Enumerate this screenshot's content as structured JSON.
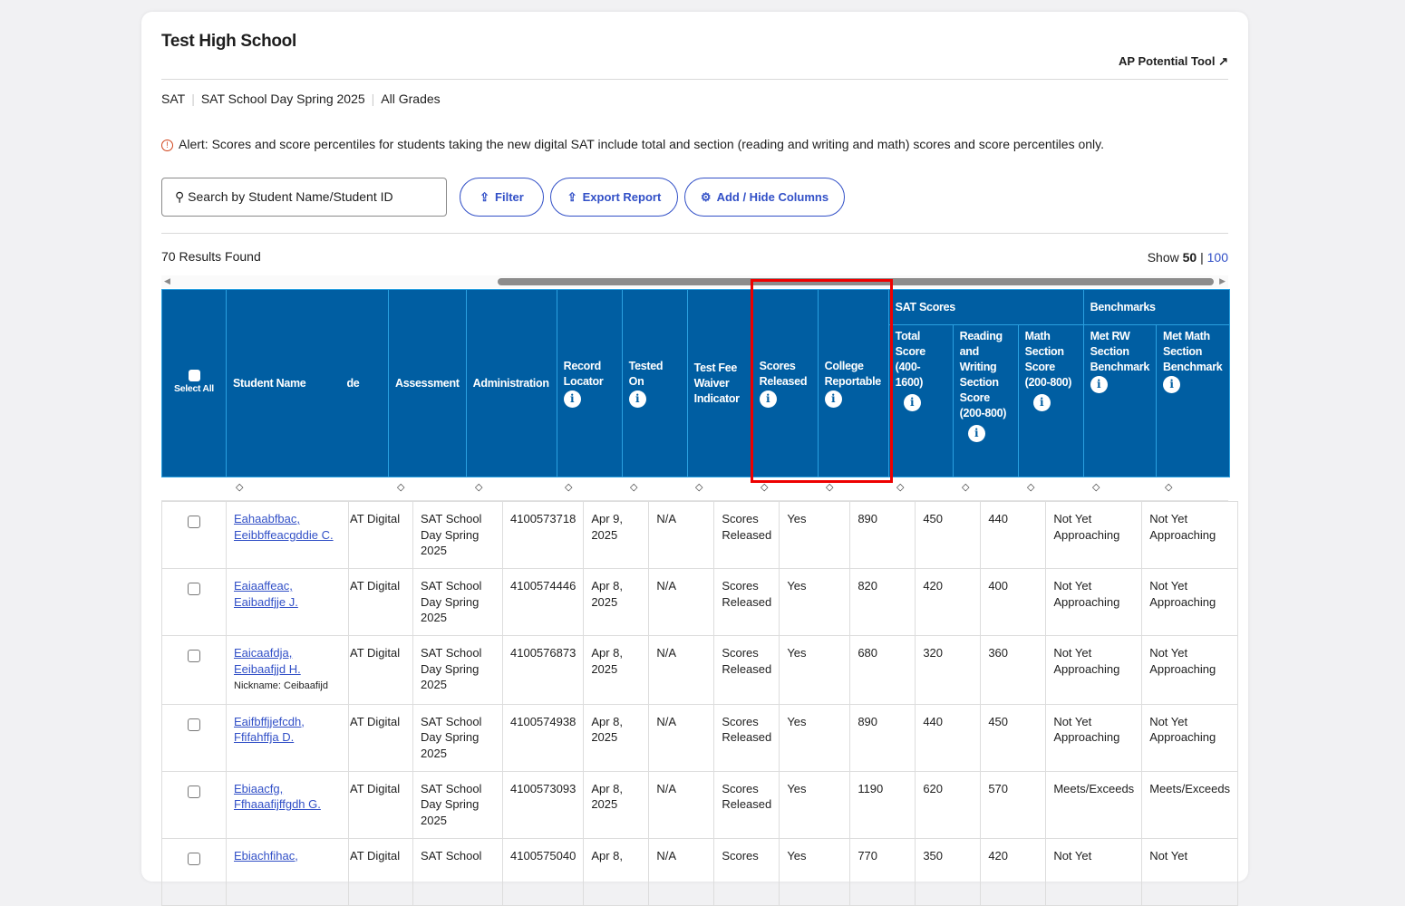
{
  "school": "Test High School",
  "ap_tool": "AP Potential Tool",
  "crumbs": [
    "SAT",
    "SAT School Day Spring 2025",
    "All Grades"
  ],
  "alert": "Alert: Scores and score percentiles for students taking the new digital SAT include total and section (reading and writing and math) scores and score percentiles only.",
  "search_placeholder": "Search by Student Name/Student ID",
  "buttons": {
    "filter": "Filter",
    "export": "Export Report",
    "columns": "Add / Hide Columns"
  },
  "results": "70 Results Found",
  "show": {
    "label": "Show",
    "current": "50",
    "sep": "|",
    "other": "100"
  },
  "headers": {
    "select_all": "Select All",
    "student_name": "Student Name",
    "de": "de",
    "assessment": "Assessment",
    "administration": "Administration",
    "record_locator": "Record Locator",
    "tested_on": "Tested On",
    "fee_waiver": "Test Fee Waiver Indicator",
    "scores_released": "Scores Released",
    "college_reportable": "College Reportable",
    "sat_scores": "SAT Scores",
    "benchmarks": "Benchmarks",
    "total": "Total Score (400-1600)",
    "rw": "Reading and Writing Section Score (200-800)",
    "math": "Math Section Score (200-800)",
    "met_rw": "Met RW Section Benchmark",
    "met_math": "Met Math Section Benchmark"
  },
  "rows": [
    {
      "name": "Eahaabfbac, Eeibbffeacgddie C.",
      "nickname": "",
      "assessment": "AT Digital",
      "admin": "SAT School Day Spring 2025",
      "locator": "4100573718",
      "tested": "Apr 9, 2025",
      "waiver": "N/A",
      "released": "Scores Released",
      "reportable": "Yes",
      "total": "890",
      "rw": "450",
      "math": "440",
      "met_rw": "Not Yet Approaching",
      "met_math": "Not Yet Approaching"
    },
    {
      "name": "Eaiaaffeac, Eaibadfjje J.",
      "nickname": "",
      "assessment": "AT Digital",
      "admin": "SAT School Day Spring 2025",
      "locator": "4100574446",
      "tested": "Apr 8, 2025",
      "waiver": "N/A",
      "released": "Scores Released",
      "reportable": "Yes",
      "total": "820",
      "rw": "420",
      "math": "400",
      "met_rw": "Not Yet Approaching",
      "met_math": "Not Yet Approaching"
    },
    {
      "name": "Eaicaafdja, Eeibaafjjd H.",
      "nickname": "Nickname: Ceibaafijd",
      "assessment": "AT Digital",
      "admin": "SAT School Day Spring 2025",
      "locator": "4100576873",
      "tested": "Apr 8, 2025",
      "waiver": "N/A",
      "released": "Scores Released",
      "reportable": "Yes",
      "total": "680",
      "rw": "320",
      "math": "360",
      "met_rw": "Not Yet Approaching",
      "met_math": "Not Yet Approaching"
    },
    {
      "name": "Eaifbffjjefcdh, Ffifahffja D.",
      "nickname": "",
      "assessment": "AT Digital",
      "admin": "SAT School Day Spring 2025",
      "locator": "4100574938",
      "tested": "Apr 8, 2025",
      "waiver": "N/A",
      "released": "Scores Released",
      "reportable": "Yes",
      "total": "890",
      "rw": "440",
      "math": "450",
      "met_rw": "Not Yet Approaching",
      "met_math": "Not Yet Approaching"
    },
    {
      "name": "Ebiaacfg, Ffhaaafijffgdh G.",
      "nickname": "",
      "assessment": "AT Digital",
      "admin": "SAT School Day Spring 2025",
      "locator": "4100573093",
      "tested": "Apr 8, 2025",
      "waiver": "N/A",
      "released": "Scores Released",
      "reportable": "Yes",
      "total": "1190",
      "rw": "620",
      "math": "570",
      "met_rw": "Meets/Exceeds",
      "met_math": "Meets/Exceeds"
    },
    {
      "name": "Ebiachfihac,",
      "nickname": "",
      "assessment": "AT Digital",
      "admin": "SAT School",
      "locator": "4100575040",
      "tested": "Apr 8,",
      "waiver": "N/A",
      "released": "Scores",
      "reportable": "Yes",
      "total": "770",
      "rw": "350",
      "math": "420",
      "met_rw": "Not Yet",
      "met_math": "Not Yet"
    }
  ]
}
